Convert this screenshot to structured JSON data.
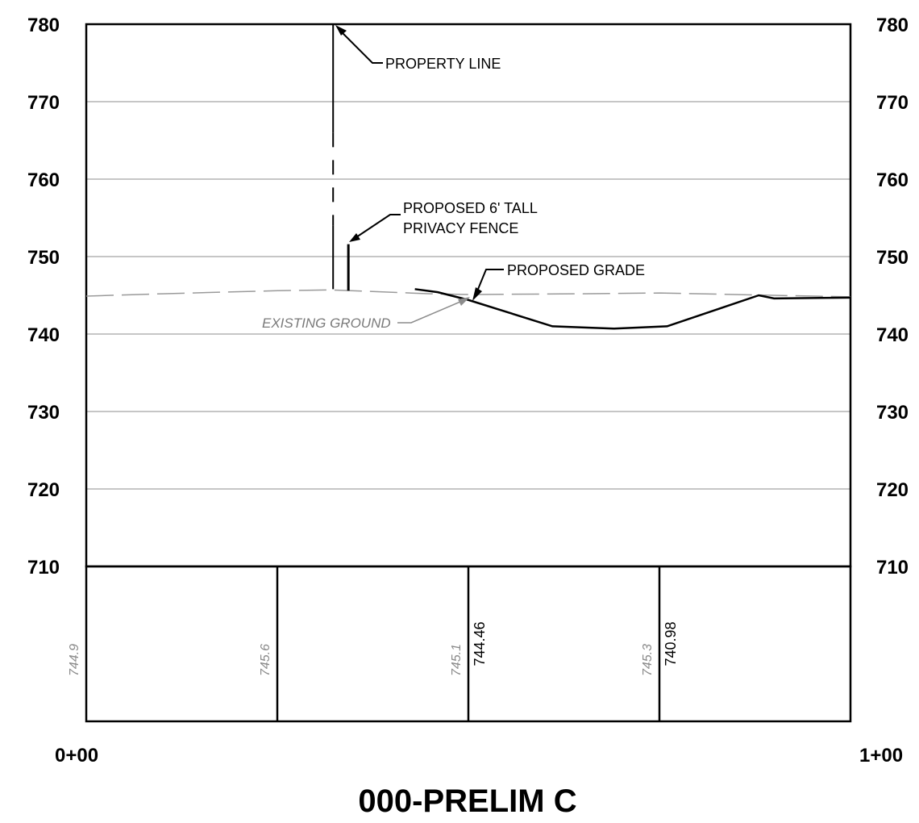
{
  "title": "000-PRELIM C",
  "chart_data": {
    "type": "profile",
    "title": "000-PRELIM C",
    "y_ticks": [
      "780",
      "770",
      "760",
      "750",
      "740",
      "730",
      "720",
      "710"
    ],
    "ylim": [
      710,
      780
    ],
    "x_ticks": [
      "0+00",
      "1+00"
    ],
    "xlim": [
      0,
      100
    ],
    "grid": true,
    "existing_ground": {
      "x": [
        0,
        10,
        25,
        32,
        45,
        50,
        65,
        75,
        90,
        100
      ],
      "y": [
        744.9,
        745.2,
        745.6,
        745.7,
        745.2,
        745.1,
        745.2,
        745.3,
        745.0,
        744.8
      ]
    },
    "proposed_grade": {
      "x": [
        43,
        46,
        50,
        61,
        69,
        76,
        88,
        90,
        100
      ],
      "y": [
        745.8,
        745.4,
        744.4,
        741.0,
        740.7,
        741.0,
        745.0,
        744.6,
        744.7
      ]
    },
    "property_line": {
      "x": 32.3,
      "y_top": 780,
      "y_bottom": 745.8
    },
    "fence": {
      "x": 34.3,
      "y_top": 751.6,
      "y_bottom": 745.6
    },
    "elevation_table": {
      "stations": [
        0,
        25,
        50,
        75,
        100
      ],
      "existing": [
        {
          "station": 0,
          "value": "744.9"
        },
        {
          "station": 25,
          "value": "745.6"
        },
        {
          "station": 50,
          "value": "745.1"
        },
        {
          "station": 75,
          "value": "745.3"
        }
      ],
      "proposed": [
        {
          "station": 50,
          "value": "744.46"
        },
        {
          "station": 75,
          "value": "740.98"
        }
      ]
    },
    "annotations": {
      "property_line": "PROPERTY LINE",
      "fence_line1": "PROPOSED 6' TALL",
      "fence_line2": "PRIVACY FENCE",
      "proposed_grade": "PROPOSED GRADE",
      "existing_ground": "EXISTING GROUND"
    }
  }
}
